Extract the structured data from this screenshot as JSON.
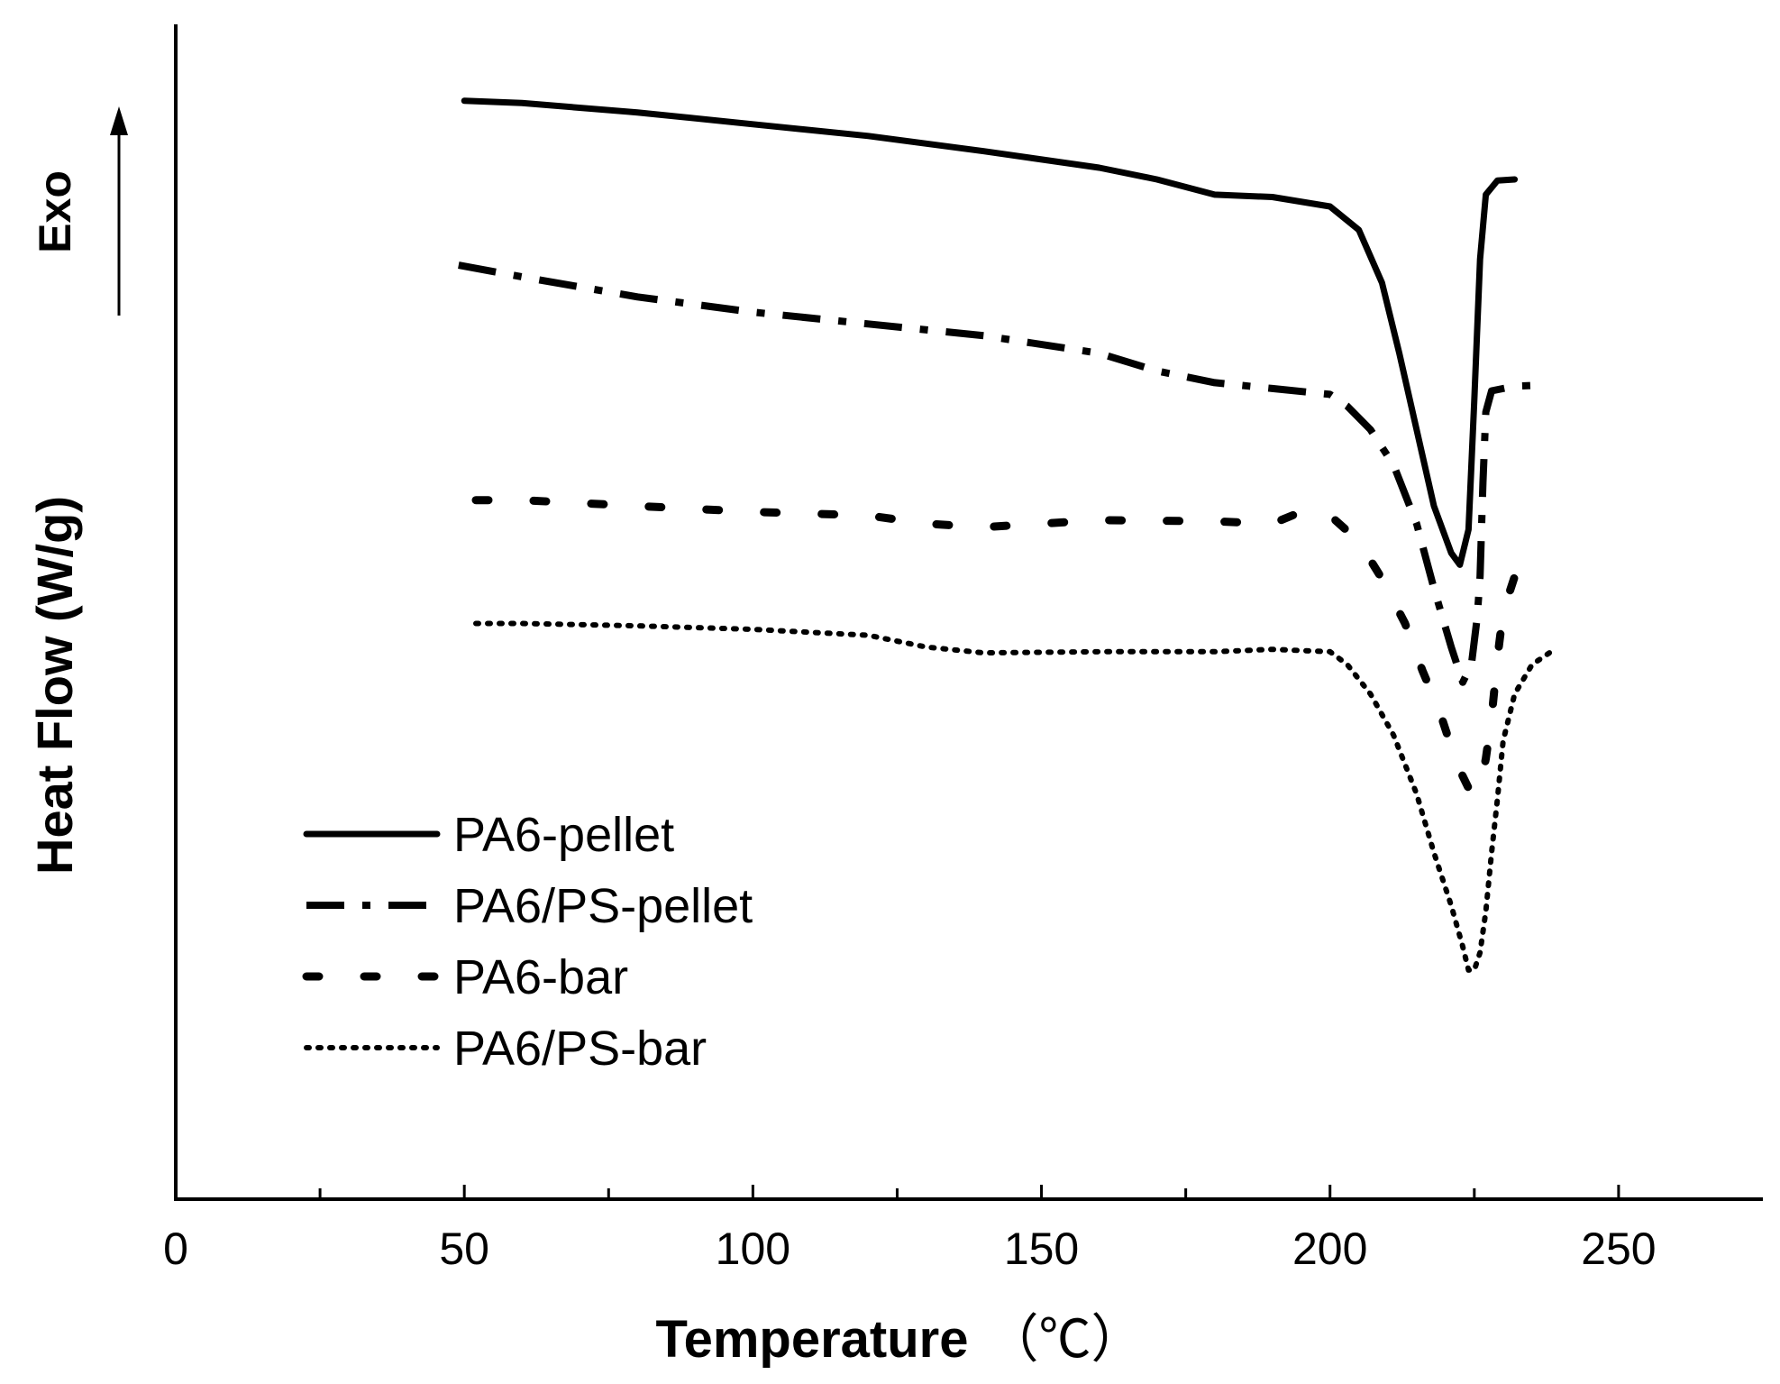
{
  "chart_data": {
    "type": "line",
    "title": "",
    "xlabel": "Temperature",
    "xunit": "（℃）",
    "ylabel": "Heat Flow (W/g)",
    "y_direction_label": "Exo",
    "xlim": [
      0,
      275
    ],
    "ylim": [
      0,
      100
    ],
    "x_ticks_major": [
      0,
      50,
      100,
      150,
      200,
      250
    ],
    "x_ticks_minor": [
      25,
      75,
      125,
      175,
      225
    ],
    "y_ticks": [],
    "grid": false,
    "legend_position": "bottom-left",
    "series": [
      {
        "name": "PA6-pellet",
        "style": "solid",
        "x": [
          50,
          60,
          80,
          100,
          120,
          140,
          160,
          170,
          180,
          190,
          200,
          205,
          209,
          212,
          215,
          218,
          221,
          222.5,
          224,
          225,
          226,
          227,
          229,
          232
        ],
        "y": [
          93.5,
          93.3,
          92.5,
          91.5,
          90.5,
          89.2,
          87.8,
          86.8,
          85.5,
          85.3,
          84.5,
          82.5,
          78,
          72,
          65.5,
          59,
          55,
          54,
          57,
          68,
          80,
          85.5,
          86.7,
          86.8
        ]
      },
      {
        "name": "PA6/PS-pellet",
        "style": "dash-dot",
        "x": [
          49,
          60,
          80,
          100,
          120,
          140,
          160,
          170,
          180,
          190,
          200,
          203,
          207,
          211,
          215,
          218,
          221,
          223,
          224.5,
          225.5,
          226,
          226.5,
          227,
          228,
          232,
          237
        ],
        "y": [
          79.5,
          78.5,
          76.8,
          75.5,
          74.5,
          73.5,
          72,
          70.5,
          69.5,
          69,
          68.5,
          67.5,
          65.5,
          62.5,
          57.5,
          52,
          47,
          44,
          45.5,
          49.5,
          53,
          61,
          67,
          68.8,
          69.2,
          69.3
        ]
      },
      {
        "name": "PA6-bar",
        "style": "dashed-dots",
        "x": [
          52,
          60,
          80,
          100,
          120,
          130,
          140,
          160,
          180,
          190,
          195,
          200,
          205,
          209,
          213,
          216,
          219,
          222,
          224,
          225,
          226,
          227,
          228,
          229,
          230,
          232
        ],
        "y": [
          59.5,
          59.5,
          59,
          58.5,
          58.2,
          57.5,
          57.2,
          57.8,
          57.7,
          57.5,
          58.5,
          58.2,
          56,
          52.8,
          49,
          45,
          41.5,
          37,
          35,
          34.5,
          35,
          37.5,
          41,
          46,
          50,
          53
        ]
      },
      {
        "name": "PA6/PS-bar",
        "style": "dotted",
        "x": [
          52,
          60,
          80,
          100,
          120,
          130,
          140,
          160,
          180,
          190,
          200,
          203,
          207,
          211,
          215,
          218,
          221,
          223,
          224,
          225,
          226,
          227,
          228,
          229,
          230,
          232,
          235,
          238
        ],
        "y": [
          49,
          49,
          48.8,
          48.5,
          48,
          47,
          46.5,
          46.6,
          46.6,
          46.8,
          46.6,
          45.5,
          43,
          39.5,
          34.5,
          29.5,
          25,
          21.5,
          19.5,
          19.5,
          21,
          24.5,
          29.5,
          34,
          39,
          43,
          45.5,
          46.5
        ]
      }
    ]
  }
}
